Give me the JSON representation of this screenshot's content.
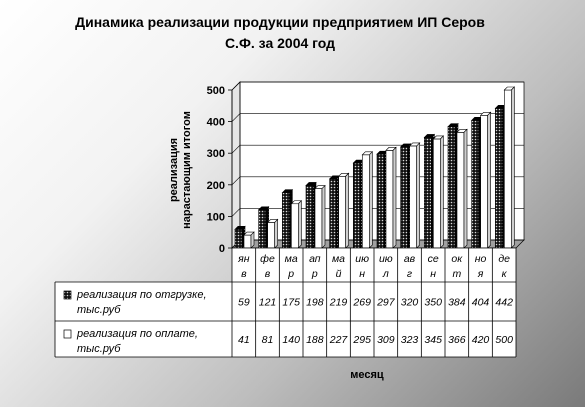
{
  "chart_data": {
    "type": "bar",
    "title_line1": "Динамика реализации продукции предприятием ИП Серов",
    "title_line2": "С.Ф. за 2004 год",
    "xlabel": "месяц",
    "ylabel_line1": "реализация",
    "ylabel_line2": "нарастающим итогом",
    "ylim": [
      0,
      500
    ],
    "yticks": [
      0,
      100,
      200,
      300,
      400,
      500
    ],
    "categories": [
      [
        "ян",
        "в"
      ],
      [
        "фе",
        "в"
      ],
      [
        "ма",
        "р"
      ],
      [
        "ап",
        "р"
      ],
      [
        "ма",
        "й"
      ],
      [
        "ию",
        "н"
      ],
      [
        "ию",
        "л"
      ],
      [
        "ав",
        "г"
      ],
      [
        "се",
        "н"
      ],
      [
        "ок",
        "т"
      ],
      [
        "но",
        "я"
      ],
      [
        "де",
        "к"
      ]
    ],
    "series": [
      {
        "name_line1": "реализация по отгрузке,",
        "name_line2": "тыс.руб",
        "values": [
          59,
          121,
          175,
          198,
          219,
          269,
          297,
          320,
          350,
          384,
          404,
          442
        ],
        "color": "#1a1a1a"
      },
      {
        "name_line1": "реализация по оплате,",
        "name_line2": "тыс.руб",
        "values": [
          41,
          81,
          140,
          188,
          227,
          295,
          309,
          323,
          345,
          366,
          420,
          500
        ],
        "color": "#ffffff"
      }
    ],
    "grid": true,
    "legend": "data-table"
  }
}
